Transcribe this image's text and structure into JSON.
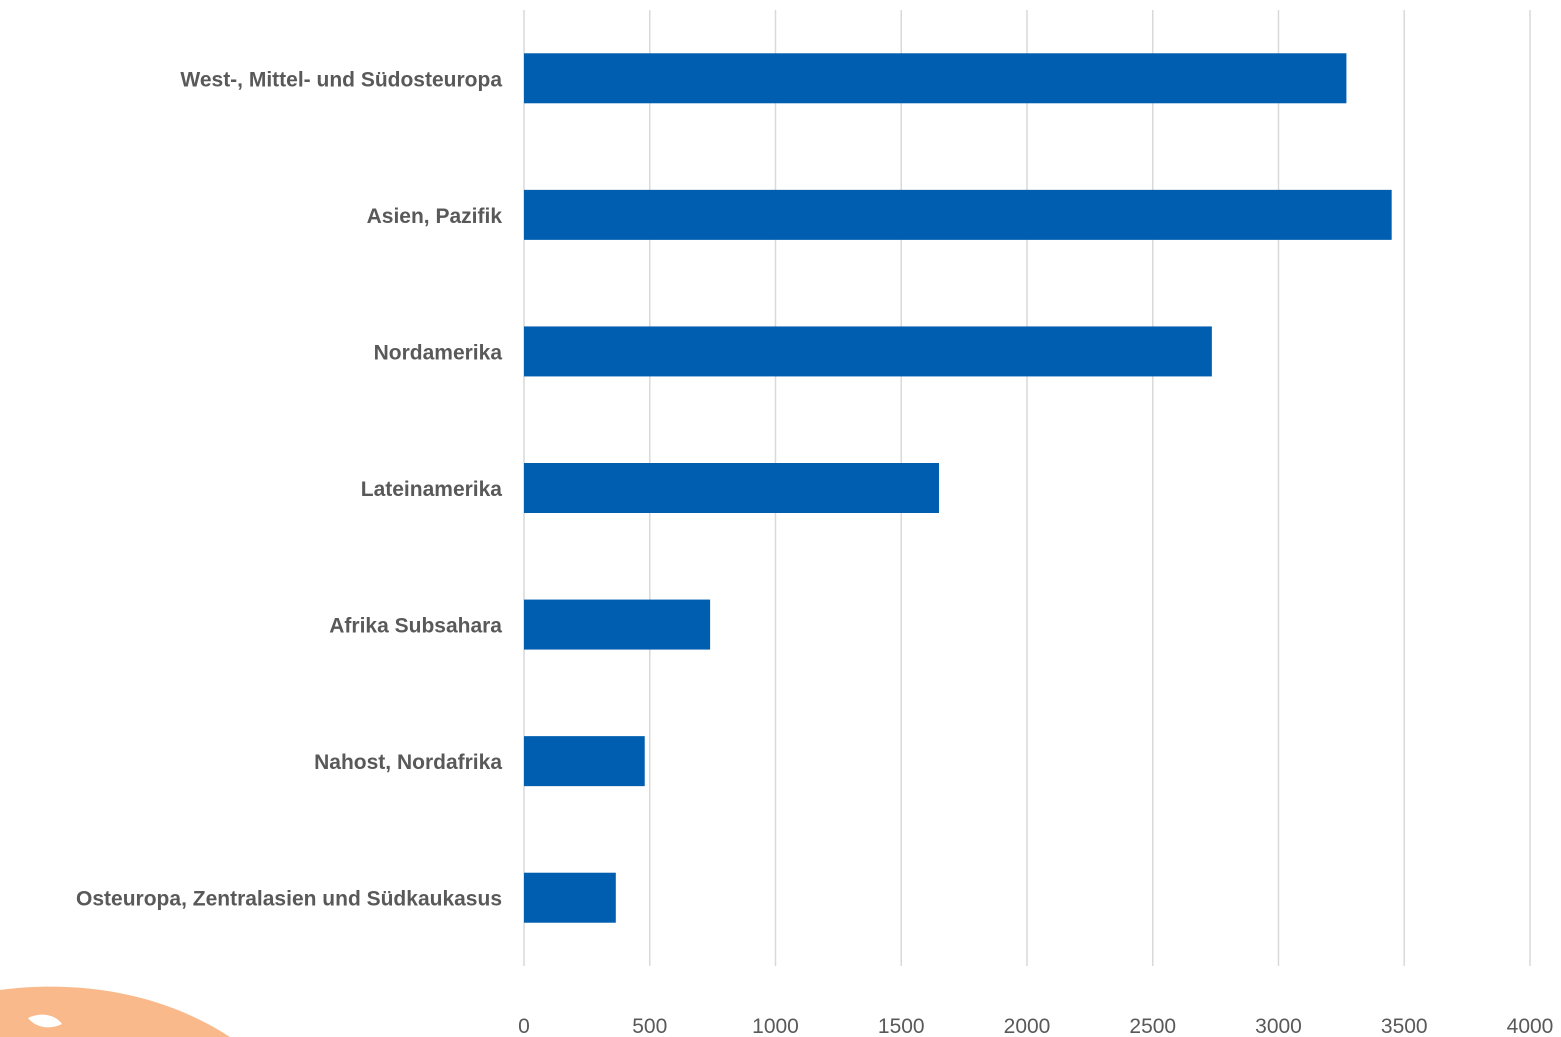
{
  "chart_data": {
    "type": "bar",
    "orientation": "horizontal",
    "categories": [
      "West-, Mittel- und Südosteuropa",
      "Asien, Pazifik",
      "Nordamerika",
      "Lateinamerika",
      "Afrika Subsahara",
      "Nahost, Nordafrika",
      "Osteuropa, Zentralasien und Südkaukasus"
    ],
    "values": [
      3270,
      3450,
      2735,
      1650,
      740,
      480,
      365
    ],
    "xlim": [
      0,
      4000
    ],
    "xticks": [
      "0",
      "500",
      "1000",
      "1500",
      "2000",
      "2500",
      "3000",
      "3500",
      "4000"
    ],
    "grid": true,
    "legend": "none",
    "colors": {
      "bar": "#005EB0",
      "grid": "#D9D9D9",
      "text": "#595959",
      "decoration": "#F9B98A"
    }
  }
}
